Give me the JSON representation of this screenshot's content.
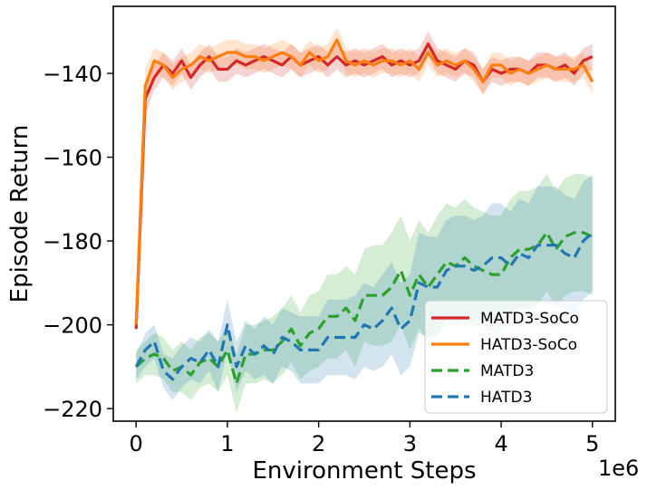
{
  "chart_data": {
    "type": "line",
    "title": "",
    "xlabel": "Environment Steps",
    "ylabel": "Episode Return",
    "x_scale_label": "1e6",
    "xlim": [
      -0.25,
      5.25
    ],
    "ylim": [
      -223,
      -124
    ],
    "xticks": [
      0,
      1,
      2,
      3,
      4,
      5
    ],
    "xtick_labels": [
      "0",
      "1",
      "2",
      "3",
      "4",
      "5"
    ],
    "yticks": [
      -220,
      -200,
      -180,
      -160,
      -140
    ],
    "ytick_labels": [
      "−220",
      "−200",
      "−180",
      "−160",
      "−140"
    ],
    "grid": false,
    "legend_position": "lower-right",
    "series": [
      {
        "name": "MATD3-SoCo",
        "color": "#d62728",
        "dash": "solid",
        "x": [
          0,
          0.1,
          0.2,
          0.3,
          0.4,
          0.5,
          0.6,
          0.7,
          0.8,
          0.9,
          1.0,
          1.1,
          1.2,
          1.3,
          1.4,
          1.5,
          1.6,
          1.7,
          1.8,
          1.9,
          2.0,
          2.1,
          2.2,
          2.3,
          2.4,
          2.5,
          2.6,
          2.7,
          2.8,
          2.9,
          3.0,
          3.1,
          3.2,
          3.3,
          3.4,
          3.5,
          3.6,
          3.7,
          3.8,
          3.9,
          4.0,
          4.1,
          4.2,
          4.3,
          4.4,
          4.5,
          4.6,
          4.7,
          4.8,
          4.9,
          5.0
        ],
        "y": [
          -201,
          -146,
          -141,
          -138,
          -140,
          -137,
          -141,
          -138,
          -136,
          -139,
          -139,
          -137,
          -138,
          -137,
          -136,
          -137,
          -138,
          -136,
          -138,
          -137,
          -136,
          -138,
          -136,
          -138,
          -137,
          -138,
          -137,
          -136,
          -138,
          -137,
          -138,
          -137,
          -133,
          -137,
          -138,
          -139,
          -137,
          -138,
          -142,
          -139,
          -140,
          -139,
          -139,
          -140,
          -138,
          -138,
          -139,
          -138,
          -140,
          -137,
          -136
        ],
        "band": [
          3,
          4,
          3,
          3,
          3,
          3,
          3,
          3,
          3,
          3,
          3,
          3,
          3,
          3,
          3,
          3,
          3,
          3,
          3,
          3,
          3,
          3,
          3,
          3,
          3,
          3,
          3,
          3,
          3,
          3,
          3,
          3,
          3,
          3,
          3,
          3,
          3,
          3,
          3,
          3,
          3,
          3,
          3,
          3,
          3,
          3,
          3,
          3,
          3,
          3,
          3
        ]
      },
      {
        "name": "HATD3-SoCo",
        "color": "#ff7f0e",
        "dash": "solid",
        "x": [
          0,
          0.1,
          0.2,
          0.3,
          0.4,
          0.5,
          0.6,
          0.7,
          0.8,
          0.9,
          1.0,
          1.1,
          1.2,
          1.3,
          1.4,
          1.5,
          1.6,
          1.7,
          1.8,
          1.9,
          2.0,
          2.1,
          2.2,
          2.3,
          2.4,
          2.5,
          2.6,
          2.7,
          2.8,
          2.9,
          3.0,
          3.1,
          3.2,
          3.3,
          3.4,
          3.5,
          3.6,
          3.7,
          3.8,
          3.9,
          4.0,
          4.1,
          4.2,
          4.3,
          4.4,
          4.5,
          4.6,
          4.7,
          4.8,
          4.9,
          5.0
        ],
        "y": [
          -200,
          -143,
          -137,
          -138,
          -141,
          -139,
          -138,
          -136,
          -137,
          -136,
          -135,
          -135,
          -136,
          -136,
          -137,
          -136,
          -135,
          -136,
          -138,
          -135,
          -137,
          -136,
          -132,
          -137,
          -138,
          -137,
          -138,
          -137,
          -137,
          -138,
          -137,
          -139,
          -135,
          -138,
          -137,
          -138,
          -137,
          -139,
          -142,
          -138,
          -138,
          -140,
          -139,
          -140,
          -139,
          -138,
          -139,
          -139,
          -139,
          -138,
          -142
        ],
        "band": [
          3,
          4,
          3,
          3,
          3,
          3,
          3,
          3,
          3,
          3,
          3,
          3,
          3,
          3,
          3,
          3,
          3,
          3,
          3,
          3,
          3,
          3,
          3,
          3,
          3,
          3,
          3,
          3,
          3,
          3,
          3,
          3,
          3,
          3,
          3,
          3,
          3,
          3,
          3,
          3,
          3,
          3,
          3,
          3,
          3,
          3,
          3,
          3,
          3,
          3,
          3
        ]
      },
      {
        "name": "MATD3",
        "color": "#2ca02c",
        "dash": "dashed",
        "x": [
          0,
          0.1,
          0.2,
          0.3,
          0.4,
          0.5,
          0.6,
          0.7,
          0.8,
          0.9,
          1.0,
          1.1,
          1.2,
          1.3,
          1.4,
          1.5,
          1.6,
          1.7,
          1.8,
          1.9,
          2.0,
          2.1,
          2.2,
          2.3,
          2.4,
          2.5,
          2.6,
          2.7,
          2.8,
          2.9,
          3.0,
          3.1,
          3.2,
          3.3,
          3.4,
          3.5,
          3.6,
          3.7,
          3.8,
          3.9,
          4.0,
          4.1,
          4.2,
          4.3,
          4.4,
          4.5,
          4.6,
          4.7,
          4.8,
          4.9,
          5.0
        ],
        "y": [
          -210,
          -208,
          -207,
          -208,
          -211,
          -210,
          -212,
          -209,
          -208,
          -210,
          -206,
          -214,
          -207,
          -207,
          -206,
          -206,
          -204,
          -201,
          -205,
          -202,
          -201,
          -198,
          -198,
          -196,
          -199,
          -193,
          -193,
          -193,
          -191,
          -187,
          -193,
          -188,
          -191,
          -188,
          -185,
          -186,
          -184,
          -186,
          -187,
          -188,
          -188,
          -184,
          -182,
          -182,
          -181,
          -178,
          -182,
          -179,
          -178,
          -178,
          -179
        ],
        "band": [
          4,
          4,
          5,
          5,
          5,
          6,
          6,
          6,
          6,
          6,
          6,
          7,
          7,
          7,
          7,
          8,
          8,
          8,
          8,
          9,
          9,
          10,
          10,
          10,
          11,
          11,
          12,
          12,
          13,
          13,
          13,
          13,
          13,
          14,
          14,
          14,
          14,
          14,
          14,
          14,
          14,
          14,
          14,
          14,
          14,
          14,
          14,
          14,
          14,
          14,
          14
        ]
      },
      {
        "name": "HATD3",
        "color": "#1f77b4",
        "dash": "dashed",
        "x": [
          0,
          0.1,
          0.2,
          0.3,
          0.4,
          0.5,
          0.6,
          0.7,
          0.8,
          0.9,
          1.0,
          1.1,
          1.2,
          1.3,
          1.4,
          1.5,
          1.6,
          1.7,
          1.8,
          1.9,
          2.0,
          2.1,
          2.2,
          2.3,
          2.4,
          2.5,
          2.6,
          2.7,
          2.8,
          2.9,
          3.0,
          3.1,
          3.2,
          3.3,
          3.4,
          3.5,
          3.6,
          3.7,
          3.8,
          3.9,
          4.0,
          4.1,
          4.2,
          4.3,
          4.4,
          4.5,
          4.6,
          4.7,
          4.8,
          4.9,
          5.0
        ],
        "y": [
          -210,
          -206,
          -204,
          -211,
          -213,
          -210,
          -208,
          -209,
          -206,
          -210,
          -200,
          -210,
          -205,
          -207,
          -205,
          -207,
          -203,
          -204,
          -206,
          -206,
          -206,
          -203,
          -203,
          -203,
          -203,
          -200,
          -201,
          -199,
          -196,
          -201,
          -199,
          -190,
          -191,
          -191,
          -187,
          -186,
          -186,
          -187,
          -186,
          -184,
          -184,
          -186,
          -183,
          -184,
          -181,
          -181,
          -181,
          -183,
          -184,
          -180,
          -178
        ],
        "band": [
          3,
          4,
          4,
          4,
          5,
          5,
          5,
          5,
          5,
          6,
          6,
          6,
          6,
          6,
          7,
          7,
          7,
          7,
          8,
          8,
          8,
          9,
          9,
          9,
          10,
          10,
          10,
          11,
          11,
          11,
          11,
          12,
          12,
          12,
          12,
          12,
          12,
          12,
          12,
          13,
          13,
          13,
          13,
          13,
          14,
          14,
          14,
          14,
          14,
          14,
          14
        ]
      }
    ]
  }
}
